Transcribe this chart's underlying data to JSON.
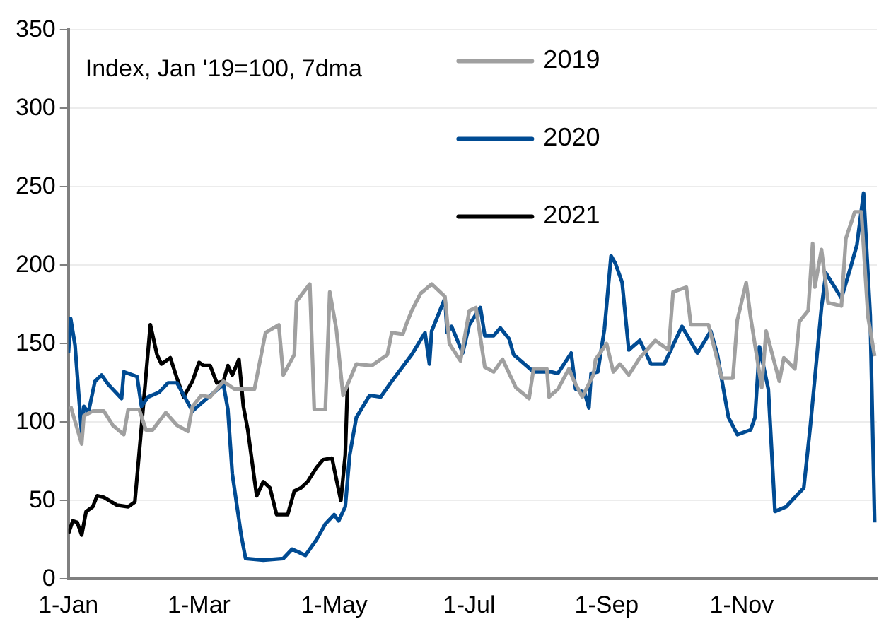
{
  "chart_data": {
    "type": "line",
    "annotations": [
      "Index, Jan '19=100, 7dma"
    ],
    "xlim": [
      "--01-01",
      "--12-31"
    ],
    "xticks": [
      {
        "value": "--01-01",
        "label": "1-Jan"
      },
      {
        "value": "--03-01",
        "label": "1-Mar"
      },
      {
        "value": "--05-01",
        "label": "1-May"
      },
      {
        "value": "--07-01",
        "label": "1-Jul"
      },
      {
        "value": "--09-01",
        "label": "1-Sep"
      },
      {
        "value": "--11-01",
        "label": "1-Nov"
      }
    ],
    "ylim": [
      0,
      350
    ],
    "yticks": [
      0,
      50,
      100,
      150,
      200,
      250,
      300,
      350
    ],
    "grid": "y",
    "legend": "top",
    "marker": "none",
    "line_style": "solid",
    "series": [
      {
        "name": "2019",
        "color": "#a0a0a0",
        "x": [
          "--01-02",
          "--01-07",
          "--01-08",
          "--01-12",
          "--01-17",
          "--01-21",
          "--01-26",
          "--01-28",
          "--02-02",
          "--02-05",
          "--02-08",
          "--02-14",
          "--02-19",
          "--02-24",
          "--02-26",
          "--03-02",
          "--03-06",
          "--03-12",
          "--03-17",
          "--03-26",
          "--03-31",
          "--04-06",
          "--04-08",
          "--04-13",
          "--04-14",
          "--04-20",
          "--04-22",
          "--04-27",
          "--04-29",
          "--05-02",
          "--05-05",
          "--05-11",
          "--05-18",
          "--05-25",
          "--05-27",
          "--06-01",
          "--06-03",
          "--06-05",
          "--06-09",
          "--06-14",
          "--06-20",
          "--06-22",
          "--06-27",
          "--07-01",
          "--07-04",
          "--07-08",
          "--07-12",
          "--07-16",
          "--07-22",
          "--07-28",
          "--07-30",
          "--08-05",
          "--08-06",
          "--08-10",
          "--08-15",
          "--08-17",
          "--08-21",
          "--08-26",
          "--08-27",
          "--09-01",
          "--09-04",
          "--09-07",
          "--09-11",
          "--09-16",
          "--09-23",
          "--09-29",
          "--10-01",
          "--10-07",
          "--10-09",
          "--10-17",
          "--10-23",
          "--10-28",
          "--10-30",
          "--11-03",
          "--11-05",
          "--11-10",
          "--11-12",
          "--11-18",
          "--11-20",
          "--11-25",
          "--11-27",
          "--12-01",
          "--12-03",
          "--12-04",
          "--12-07",
          "--12-10",
          "--12-16",
          "--12-18",
          "--12-22",
          "--12-25",
          "--12-28",
          "--12-31"
        ],
        "values": [
          110,
          86,
          104,
          107,
          107,
          98,
          92,
          108,
          108,
          95,
          95,
          106,
          98,
          94,
          110,
          117,
          116,
          126,
          121,
          121,
          157,
          162,
          130,
          143,
          177,
          188,
          108,
          108,
          183,
          159,
          117,
          137,
          136,
          143,
          157,
          156,
          164,
          171,
          182,
          188,
          180,
          150,
          139,
          171,
          173,
          135,
          132,
          140,
          122,
          115,
          134,
          134,
          116,
          121,
          134,
          127,
          116,
          130,
          140,
          150,
          132,
          137,
          130,
          141,
          152,
          146,
          183,
          186,
          162,
          162,
          128,
          128,
          165,
          189,
          167,
          122,
          158,
          126,
          141,
          134,
          164,
          171,
          214,
          186,
          210,
          176,
          174,
          217,
          234,
          234,
          167,
          142
        ]
      },
      {
        "name": "2020",
        "color": "#004b93",
        "x": [
          "--01-01",
          "--01-02",
          "--01-04",
          "--01-07",
          "--01-08",
          "--01-10",
          "--01-13",
          "--01-16",
          "--01-19",
          "--01-25",
          "--01-26",
          "--02-01",
          "--02-03",
          "--02-06",
          "--02-11",
          "--02-15",
          "--02-19",
          "--02-26",
          "--03-02",
          "--03-12",
          "--03-14",
          "--03-16",
          "--03-20",
          "--03-22",
          "--03-30",
          "--04-08",
          "--04-12",
          "--04-18",
          "--04-23",
          "--04-27",
          "--05-01",
          "--05-03",
          "--05-06",
          "--05-08",
          "--05-11",
          "--05-17",
          "--05-22",
          "--05-27",
          "--06-05",
          "--06-11",
          "--06-13",
          "--06-14",
          "--06-20",
          "--06-21",
          "--06-23",
          "--06-28",
          "--07-01",
          "--07-06",
          "--07-08",
          "--07-12",
          "--07-15",
          "--07-19",
          "--07-21",
          "--07-30",
          "--08-07",
          "--08-10",
          "--08-16",
          "--08-18",
          "--08-22",
          "--08-24",
          "--08-25",
          "--08-28",
          "--08-31",
          "--09-03",
          "--09-05",
          "--09-08",
          "--09-11",
          "--09-16",
          "--09-21",
          "--09-27",
          "--10-05",
          "--10-12",
          "--10-18",
          "--10-21",
          "--10-26",
          "--10-30",
          "--11-05",
          "--11-07",
          "--11-09",
          "--11-13",
          "--11-16",
          "--11-21",
          "--11-29",
          "--12-02",
          "--12-07",
          "--12-09",
          "--12-16",
          "--12-20",
          "--12-23",
          "--12-26",
          "--12-29",
          "--12-31"
        ],
        "values": [
          144,
          166,
          149,
          92,
          110,
          106,
          126,
          130,
          124,
          115,
          132,
          129,
          110,
          116,
          119,
          125,
          125,
          107,
          112,
          124,
          108,
          67,
          28,
          13,
          12,
          13,
          19,
          15,
          25,
          35,
          41,
          37,
          46,
          79,
          103,
          117,
          116,
          126,
          143,
          157,
          137,
          158,
          179,
          157,
          161,
          144,
          162,
          173,
          155,
          155,
          160,
          153,
          143,
          132,
          132,
          131,
          144,
          121,
          119,
          109,
          131,
          132,
          159,
          206,
          201,
          189,
          146,
          152,
          137,
          137,
          161,
          144,
          158,
          143,
          103,
          92,
          95,
          103,
          148,
          121,
          43,
          46,
          58,
          98,
          173,
          195,
          179,
          198,
          213,
          246,
          168,
          36
        ]
      },
      {
        "name": "2021",
        "color": "#000000",
        "x": [
          "--01-01",
          "--01-03",
          "--01-05",
          "--01-07",
          "--01-09",
          "--01-12",
          "--01-14",
          "--01-17",
          "--01-23",
          "--01-28",
          "--01-31",
          "--02-03",
          "--02-07",
          "--02-10",
          "--02-12",
          "--02-16",
          "--02-19",
          "--02-22",
          "--02-26",
          "--03-01",
          "--03-03",
          "--03-06",
          "--03-09",
          "--03-12",
          "--03-14",
          "--03-16",
          "--03-19",
          "--03-21",
          "--03-23",
          "--03-27",
          "--03-30",
          "--04-02",
          "--04-05",
          "--04-10",
          "--04-13",
          "--04-16",
          "--04-19",
          "--04-23",
          "--04-26",
          "--04-30",
          "--05-04",
          "--05-06",
          "--05-07"
        ],
        "values": [
          29,
          37,
          36,
          28,
          43,
          46,
          53,
          52,
          47,
          46,
          49,
          97,
          162,
          143,
          137,
          141,
          128,
          116,
          126,
          138,
          136,
          136,
          125,
          126,
          136,
          130,
          140,
          110,
          95,
          53,
          62,
          58,
          41,
          41,
          56,
          58,
          62,
          71,
          76,
          77,
          50,
          79,
          123
        ]
      }
    ]
  }
}
